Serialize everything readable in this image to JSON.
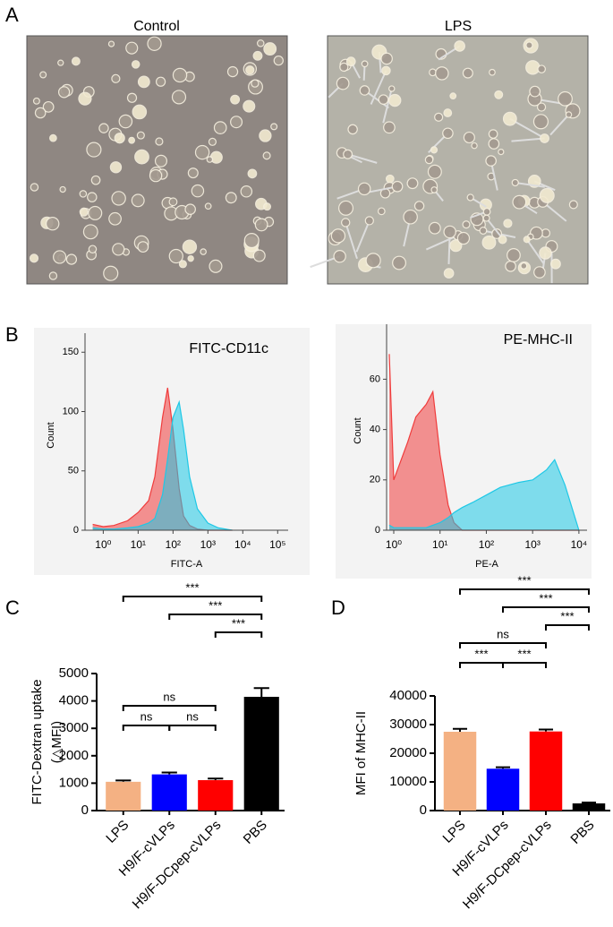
{
  "panel_labels": [
    "A",
    "B",
    "C",
    "D"
  ],
  "micrographs": [
    {
      "title": "Control"
    },
    {
      "title": "LPS"
    }
  ],
  "chart_data": [
    {
      "type": "area",
      "xscale": "log",
      "annotation": "FITC-CD11c",
      "xlabel": "FITC-A",
      "ylabel": "Count",
      "x": [
        0.5,
        1,
        2,
        5,
        10,
        20,
        30,
        50,
        70,
        100,
        150,
        200,
        300,
        500,
        1000,
        2000,
        5000
      ],
      "series": [
        {
          "color": "#f03c3c",
          "values": [
            5,
            3,
            4,
            8,
            15,
            25,
            45,
            95,
            120,
            85,
            35,
            12,
            4,
            1,
            0,
            0,
            0
          ]
        },
        {
          "color": "#1ec8e6",
          "values": [
            2,
            1,
            1,
            2,
            3,
            6,
            10,
            30,
            60,
            95,
            108,
            85,
            45,
            18,
            6,
            2,
            0
          ]
        }
      ],
      "xlim": [
        0.3,
        200000
      ],
      "xticks": [
        {
          "value": 1,
          "label": "10⁰"
        },
        {
          "value": 10,
          "label": "10¹"
        },
        {
          "value": 100,
          "label": "10²"
        },
        {
          "value": 1000,
          "label": "10³"
        },
        {
          "value": 10000,
          "label": "10⁴"
        },
        {
          "value": 100000,
          "label": "10⁵"
        }
      ],
      "ylim": [
        0,
        160
      ],
      "yticks": [
        0,
        50,
        100,
        150
      ]
    },
    {
      "type": "area",
      "xscale": "log",
      "annotation": "PE-MHC-II",
      "xlabel": "PE-A",
      "ylabel": "Count",
      "x": [
        0.8,
        1,
        2,
        3,
        5,
        7,
        10,
        15,
        20,
        30,
        50,
        100,
        200,
        500,
        1000,
        2000,
        3000,
        5000,
        10000
      ],
      "series": [
        {
          "color": "#f03c3c",
          "values": [
            70,
            20,
            35,
            45,
            50,
            55,
            30,
            10,
            3,
            0,
            0,
            0,
            0,
            0,
            0,
            0,
            0,
            0,
            0
          ]
        },
        {
          "color": "#1ec8e6",
          "values": [
            2,
            1,
            1,
            1,
            1,
            2,
            3,
            5,
            7,
            9,
            11,
            14,
            17,
            19,
            20,
            24,
            28,
            18,
            0
          ]
        }
      ],
      "xlim": [
        0.7,
        15000
      ],
      "xticks": [
        {
          "value": 1,
          "label": "10⁰"
        },
        {
          "value": 10,
          "label": "10¹"
        },
        {
          "value": 100,
          "label": "10²"
        },
        {
          "value": 1000,
          "label": "10³"
        },
        {
          "value": 10000,
          "label": "10⁴"
        }
      ],
      "ylim": [
        0,
        79
      ],
      "yticks": [
        0,
        20,
        40,
        60
      ]
    },
    {
      "type": "bar",
      "ylabel": [
        "FITC-Dextran uptake",
        "(△MFI)"
      ],
      "categories": [
        "LPS",
        "H9/F-cVLPs",
        "H9/F-DCpep-cVLPs",
        "PBS"
      ],
      "values": [
        1050,
        1320,
        1110,
        4150
      ],
      "errors": [
        50,
        70,
        60,
        320
      ],
      "colors": [
        "#f4b183",
        "#0000ff",
        "#ff0000",
        "#000000"
      ],
      "ylim": [
        0,
        5000
      ],
      "yticks": [
        0,
        1000,
        2000,
        3000,
        4000,
        5000
      ],
      "significance": [
        {
          "pair": [
            0,
            3
          ],
          "label": "***"
        },
        {
          "pair": [
            1,
            3
          ],
          "label": "***"
        },
        {
          "pair": [
            2,
            3
          ],
          "label": "***"
        },
        {
          "pair": [
            0,
            2
          ],
          "label": "ns"
        },
        {
          "pair": [
            0,
            1
          ],
          "label": "ns"
        },
        {
          "pair": [
            1,
            2
          ],
          "label": "ns"
        }
      ]
    },
    {
      "type": "bar",
      "ylabel": [
        "MFI of MHC-II"
      ],
      "categories": [
        "LPS",
        "H9/F-cVLPs",
        "H9/F-DCpep-cVLPs",
        "PBS"
      ],
      "values": [
        27500,
        14600,
        27600,
        2500
      ],
      "errors": [
        1000,
        500,
        700,
        300
      ],
      "colors": [
        "#f4b183",
        "#0000ff",
        "#ff0000",
        "#000000"
      ],
      "ylim": [
        0,
        40000
      ],
      "yticks": [
        0,
        10000,
        20000,
        30000,
        40000
      ],
      "significance": [
        {
          "pair": [
            0,
            3
          ],
          "label": "***"
        },
        {
          "pair": [
            1,
            3
          ],
          "label": "***"
        },
        {
          "pair": [
            2,
            3
          ],
          "label": "***"
        },
        {
          "pair": [
            0,
            2
          ],
          "label": "ns"
        },
        {
          "pair": [
            0,
            1
          ],
          "label": "***"
        },
        {
          "pair": [
            1,
            2
          ],
          "label": "***"
        }
      ]
    }
  ]
}
